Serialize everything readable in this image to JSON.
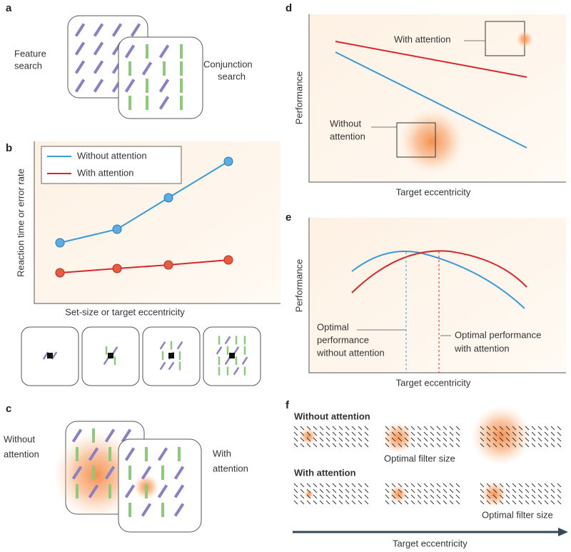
{
  "panels": {
    "a": {
      "label": "a",
      "feature": [
        "Feature",
        "search"
      ],
      "conjunction": [
        "Conjunction",
        "search"
      ]
    },
    "b": {
      "label": "b",
      "legend": [
        "Without attention",
        "With attention"
      ],
      "y_label": "Reaction time or error rate",
      "x_label": "Set-size or target eccentricity"
    },
    "c": {
      "label": "c",
      "without": [
        "Without",
        "attention"
      ],
      "with": [
        "With",
        "attention"
      ]
    },
    "d": {
      "label": "d",
      "with": "With attention",
      "without": [
        "Without",
        "attention"
      ],
      "y_label": "Performance",
      "x_label": "Target eccentricity"
    },
    "e": {
      "label": "e",
      "y_label": "Performance",
      "without": [
        "Optimal",
        "performance",
        "without attention"
      ],
      "with": [
        "Optimal performance",
        "with attention"
      ],
      "x_label": "Target eccentricity"
    },
    "f": {
      "label": "f",
      "without": "Without attention",
      "filter_1": "Optimal filter size",
      "with": "With attention",
      "filter_2": "Optimal filter size",
      "x_label": "Target eccentricity"
    }
  }
}
